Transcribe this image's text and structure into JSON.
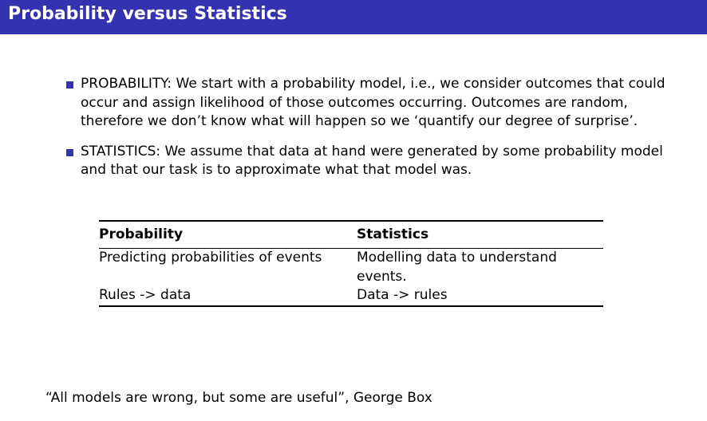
{
  "slide": {
    "title": "Probability versus Statistics",
    "accent_color": "#3333b2"
  },
  "bullets": [
    {
      "text": "PROBABILITY: We start with a probability model, i.e., we consider outcomes that could occur and assign likelihood of those outcomes occurring. Outcomes are random, therefore we don’t know what will happen so we ‘quantify our degree of surprise’."
    },
    {
      "text": "STATISTICS: We assume that data at hand were generated by some probability model and that our task is to approximate what that model was."
    }
  ],
  "table": {
    "headers": [
      "Probability",
      "Statistics"
    ],
    "rows": [
      [
        "Predicting probabilities of events",
        "Modelling data to understand events."
      ],
      [
        "Rules -> data",
        "Data -> rules"
      ]
    ]
  },
  "quote": {
    "text": "“All models are wrong, but some are useful”, George Box"
  }
}
